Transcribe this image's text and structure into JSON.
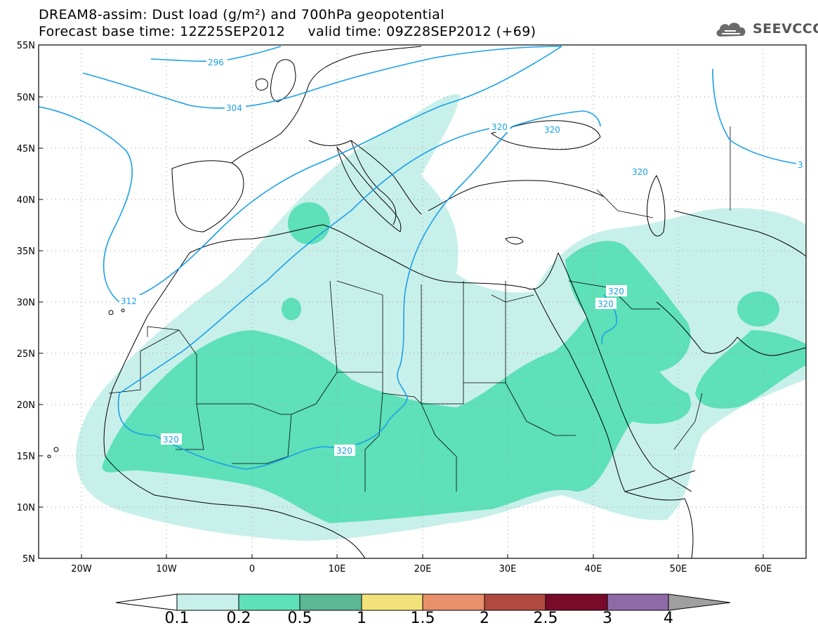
{
  "header": {
    "title_line1": "DREAM8-assim: Dust load (g/m²) and 700hPa geopotential",
    "title_line2": "Forecast base time: 12Z25SEP2012     valid time: 09Z28SEP2012 (+69)"
  },
  "brand": {
    "name": "SEEVCCC",
    "icon": "cloud-logo-icon"
  },
  "axes": {
    "lat_labels": [
      "55N",
      "50N",
      "45N",
      "40N",
      "35N",
      "30N",
      "25N",
      "20N",
      "15N",
      "10N",
      "5N"
    ],
    "lon_labels": [
      "20W",
      "10W",
      "0",
      "10E",
      "20E",
      "30E",
      "40E",
      "50E",
      "60E"
    ]
  },
  "contour_labels": [
    "296",
    "304",
    "320",
    "320",
    "320",
    "320",
    "312",
    "320",
    "320",
    "320",
    "3"
  ],
  "colorbar": {
    "levels": [
      "0.1",
      "0.2",
      "0.5",
      "1",
      "1.5",
      "2",
      "2.5",
      "3",
      "4"
    ],
    "colors": [
      "#c8f0ea",
      "#5ee0b8",
      "#5cb894",
      "#f2e27a",
      "#e8906a",
      "#b04a3e",
      "#7a0a2a",
      "#8e6aa6"
    ],
    "end_low": "#ffffff",
    "end_high": "#a0a0a0"
  },
  "colors": {
    "dust_light": "#c8f0ea",
    "dust_mid": "#5ee0b8",
    "geopotential_line": "#1aa0e8",
    "border": "#000000",
    "grid": "#9a9a9a"
  }
}
